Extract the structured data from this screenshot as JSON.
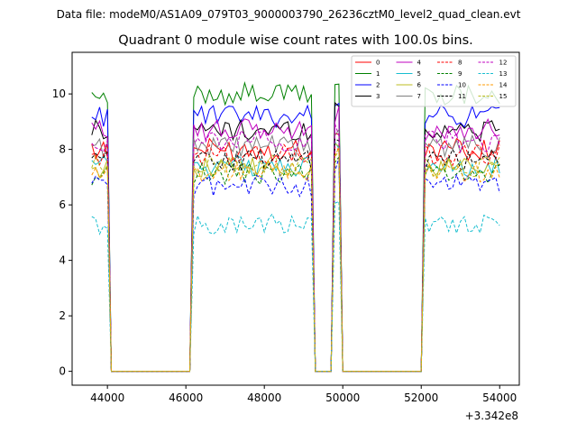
{
  "header": {
    "data_file": "Data file: modeM0/AS1A09_079T03_9000003790_26236cztM0_level2_quad_clean.evt"
  },
  "chart_data": {
    "type": "line",
    "title": "Quadrant 0 module wise count rates with 100.0s bins.",
    "xlabel": "",
    "ylabel": "",
    "x_offset_label": "+3.342e8",
    "xlim": [
      43100,
      54500
    ],
    "ylim": [
      -0.5,
      11.5
    ],
    "xticks": [
      44000,
      46000,
      48000,
      50000,
      52000,
      54000
    ],
    "xtick_labels": [
      "44000",
      "46000",
      "48000",
      "50000",
      "52000",
      "54000"
    ],
    "yticks": [
      0,
      2,
      4,
      6,
      8,
      10
    ],
    "ytick_labels": [
      "0",
      "2",
      "4",
      "6",
      "8",
      "10"
    ],
    "legend_position": "top-right",
    "legend_columns": 4,
    "segments": [
      {
        "x_start": 43600,
        "x_end": 44000
      },
      {
        "x_start": 46200,
        "x_end": 49200
      },
      {
        "x_start": 49800,
        "x_end": 49900
      },
      {
        "x_start": 52100,
        "x_end": 54000
      }
    ],
    "series": [
      {
        "name": "0",
        "color": "#ff0000",
        "dash": "solid",
        "level": 8.0,
        "peak": 8.5
      },
      {
        "name": "1",
        "color": "#008000",
        "dash": "solid",
        "level": 10.0,
        "peak": 10.5
      },
      {
        "name": "2",
        "color": "#0000ff",
        "dash": "solid",
        "level": 9.2,
        "peak": 9.8
      },
      {
        "name": "3",
        "color": "#000000",
        "dash": "solid",
        "level": 8.7,
        "peak": 9.5
      },
      {
        "name": "4",
        "color": "#bf00bf",
        "dash": "solid",
        "level": 8.7,
        "peak": 9.3
      },
      {
        "name": "5",
        "color": "#17becf",
        "dash": "solid",
        "level": 7.4,
        "peak": 8.3
      },
      {
        "name": "6",
        "color": "#bcbd22",
        "dash": "solid",
        "level": 7.3,
        "peak": 8.0
      },
      {
        "name": "7",
        "color": "#7f7f7f",
        "dash": "solid",
        "level": 8.1,
        "peak": 8.6
      },
      {
        "name": "8",
        "color": "#ff0000",
        "dash": "dashed",
        "level": 7.8,
        "peak": 8.2
      },
      {
        "name": "9",
        "color": "#008000",
        "dash": "dashed",
        "level": 7.1,
        "peak": 7.8
      },
      {
        "name": "10",
        "color": "#0000ff",
        "dash": "dashed",
        "level": 6.7,
        "peak": 7.3
      },
      {
        "name": "11",
        "color": "#000000",
        "dash": "dashed",
        "level": 7.6,
        "peak": 8.2
      },
      {
        "name": "12",
        "color": "#bf00bf",
        "dash": "dashed",
        "level": 8.3,
        "peak": 8.8
      },
      {
        "name": "13",
        "color": "#17becf",
        "dash": "dashed",
        "level": 5.3,
        "peak": 6.1
      },
      {
        "name": "14",
        "color": "#ff9900",
        "dash": "dashed",
        "level": 7.2,
        "peak": 7.8
      },
      {
        "name": "15",
        "color": "#bcbd22",
        "dash": "dashed",
        "level": 7.4,
        "peak": 8.0
      }
    ]
  }
}
